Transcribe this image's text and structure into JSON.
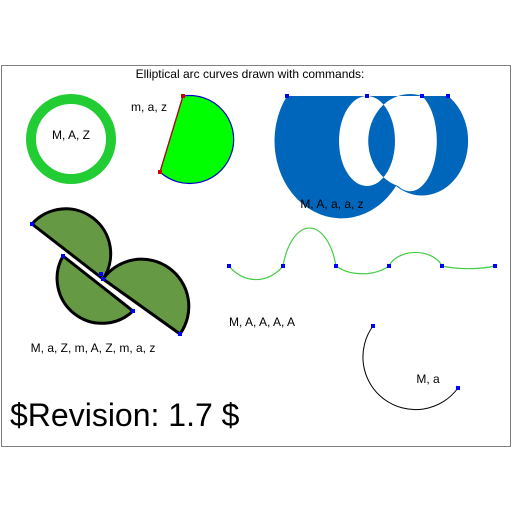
{
  "title": "Elliptical arc curves drawn with commands:",
  "revision": "$Revision: 1.7 $",
  "colors": {
    "frame": "#808080",
    "ring": "#22cc33",
    "green_fill": "#00ff00",
    "blue_fill": "#0066bb",
    "olive_fill": "#669944",
    "wave": "#44cc44",
    "marker_blue": "#0000ff",
    "marker_red": "#cc0000"
  },
  "figures": {
    "ring": {
      "label": "M, A, Z"
    },
    "pie": {
      "label": "m, a, z"
    },
    "blue_lobes": {
      "label": "M, A, a, a, z"
    },
    "olive": {
      "label": "M, a, Z, m, A, Z, m, a, z"
    },
    "wave": {
      "label": "M, A, A, A, A"
    },
    "small_arc": {
      "label": "M, a"
    }
  }
}
